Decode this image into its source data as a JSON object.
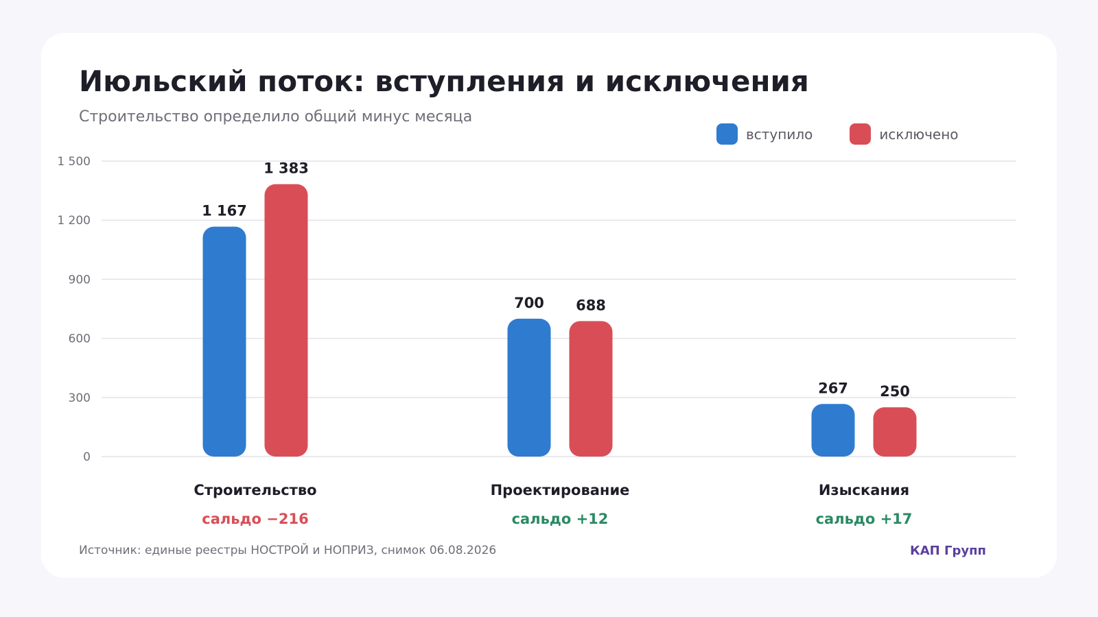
{
  "chart_data": {
    "type": "bar",
    "title": "Июльский поток: вступления и исключения",
    "subtitle": "Строительство определило общий минус месяца",
    "categories": [
      "Строительство",
      "Проектирование",
      "Изыскания"
    ],
    "series": [
      {
        "name": "вступило",
        "color": "#2f7bd0",
        "values": [
          1167,
          700,
          267
        ],
        "labels": [
          "1 167",
          "700",
          "267"
        ]
      },
      {
        "name": "исключено",
        "color": "#d94e56",
        "values": [
          1383,
          688,
          250
        ],
        "labels": [
          "1 383",
          "688",
          "250"
        ]
      }
    ],
    "balances": [
      {
        "text": "сальдо −216",
        "color": "#d94e56"
      },
      {
        "text": "сальдо +12",
        "color": "#2a8a64"
      },
      {
        "text": "сальдо +17",
        "color": "#2a8a64"
      }
    ],
    "yticks": [
      "0",
      "300",
      "600",
      "900",
      "1 200",
      "1 500"
    ],
    "ytick_values": [
      0,
      300,
      600,
      900,
      1200,
      1500
    ],
    "ylim": [
      0,
      1500
    ],
    "grid": true,
    "legend_position": "top-right"
  },
  "footer": {
    "source": "Источник: единые реестры НОСТРОЙ и НОПРИЗ, снимок 06.08.2026",
    "brand": "КАП Групп"
  }
}
